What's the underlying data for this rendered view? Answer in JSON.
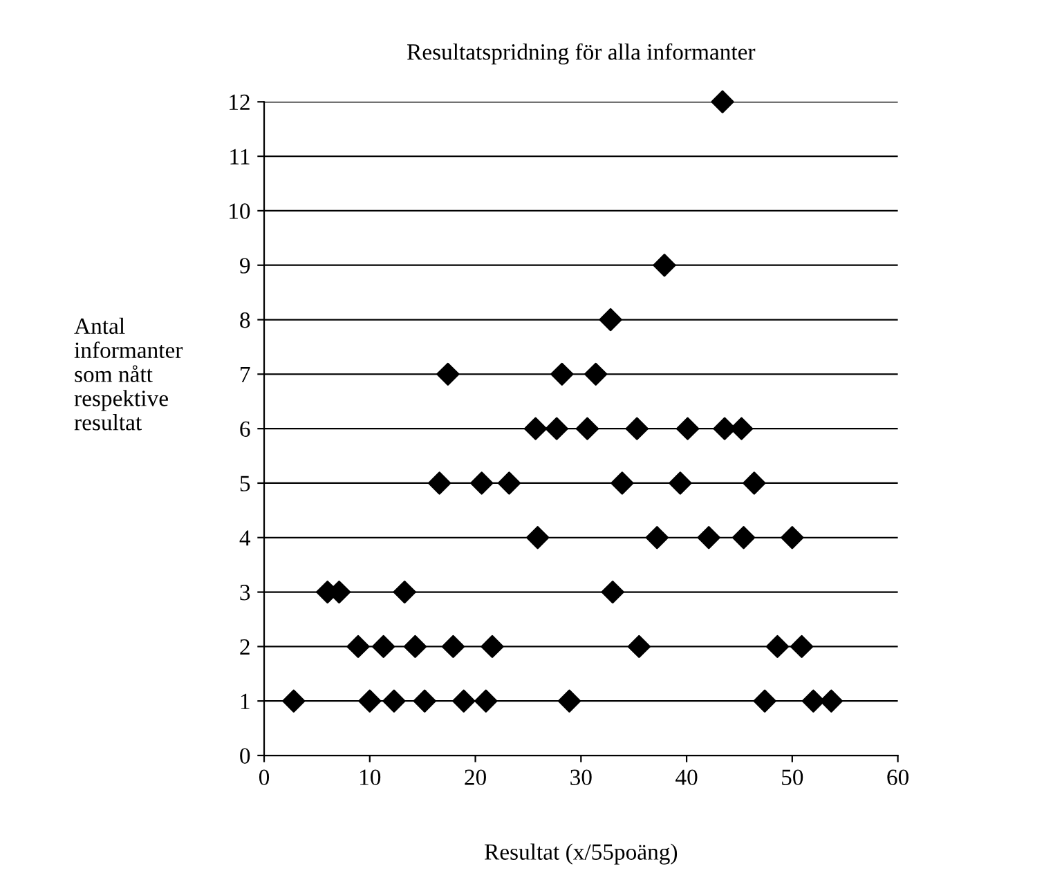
{
  "chart_data": {
    "type": "scatter",
    "title": "Resultatspridning för alla informanter",
    "xlabel": "Resultat (x/55poäng)",
    "ylabel": "Antal\ninformanter\nsom nått\nrespektive\nresultat",
    "xlim": [
      0,
      60
    ],
    "xticks": [
      0,
      10,
      20,
      30,
      40,
      50,
      60
    ],
    "ylim": [
      0,
      12
    ],
    "yticks": [
      0,
      1,
      2,
      3,
      4,
      5,
      6,
      7,
      8,
      9,
      10,
      11,
      12
    ],
    "grid": "y",
    "marker": "diamond",
    "legend": false,
    "series": [
      {
        "color": "#000000",
        "x": [
          2.8,
          10.0,
          12.3,
          15.2,
          18.9,
          21.0,
          28.9,
          47.4,
          52.0,
          53.7,
          8.9,
          11.3,
          14.3,
          17.9,
          21.6,
          35.5,
          48.6,
          50.9,
          6.0,
          7.1,
          13.3,
          33.0,
          25.9,
          37.2,
          42.1,
          45.4,
          50.0,
          16.6,
          20.6,
          23.2,
          33.9,
          39.4,
          46.4,
          25.7,
          27.7,
          30.6,
          35.3,
          40.1,
          43.6,
          45.2,
          17.4,
          28.2,
          31.4,
          32.8,
          37.9,
          43.4
        ],
        "values": [
          1,
          1,
          1,
          1,
          1,
          1,
          1,
          1,
          1,
          1,
          2,
          2,
          2,
          2,
          2,
          2,
          2,
          2,
          3,
          3,
          3,
          3,
          4,
          4,
          4,
          4,
          4,
          5,
          5,
          5,
          5,
          5,
          5,
          6,
          6,
          6,
          6,
          6,
          6,
          6,
          7,
          7,
          7,
          8,
          9,
          12
        ]
      }
    ]
  }
}
